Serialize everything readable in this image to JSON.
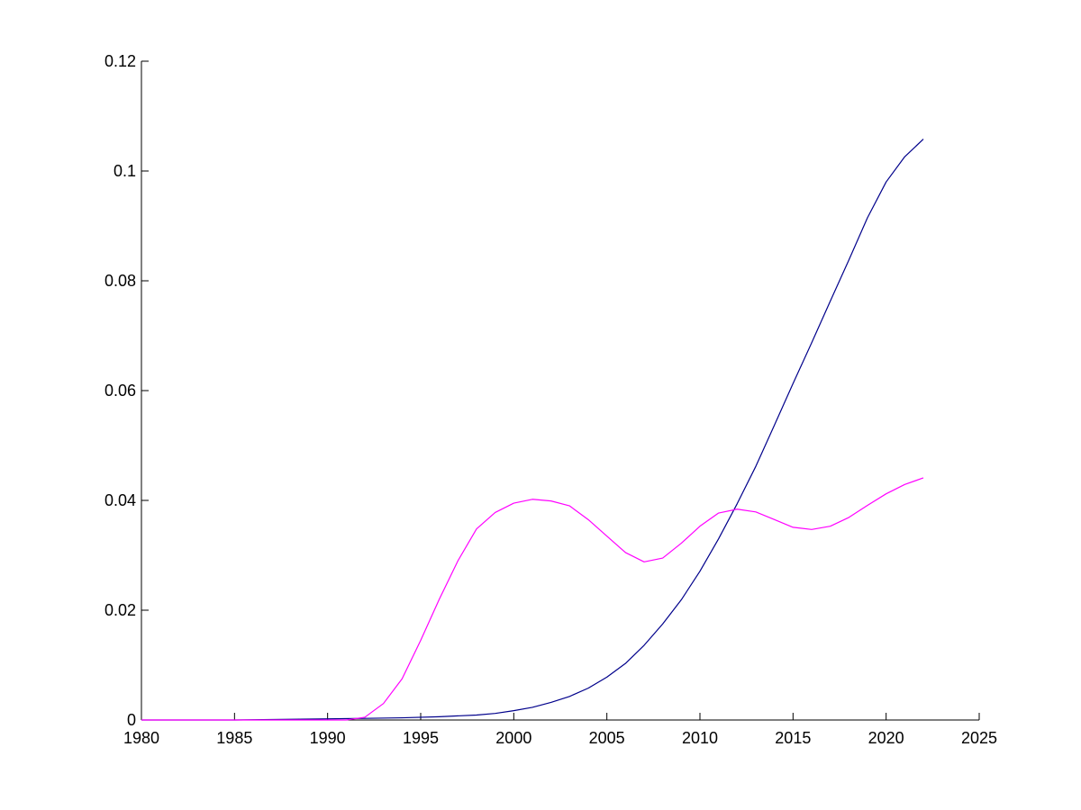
{
  "chart_data": {
    "type": "line",
    "title": "",
    "xlabel": "",
    "ylabel": "",
    "xlim": [
      1980,
      2025
    ],
    "ylim": [
      0,
      0.12
    ],
    "grid": false,
    "legend": "none",
    "x_ticks": [
      "1980",
      "1985",
      "1990",
      "1995",
      "2000",
      "2005",
      "2010",
      "2015",
      "2020",
      "2025"
    ],
    "y_ticks": [
      "0",
      "0.02",
      "0.04",
      "0.06",
      "0.08",
      "0.1",
      "0.12"
    ],
    "series": [
      {
        "color": "#00008b",
        "x": [
          1980,
          1985,
          1990,
          1992,
          1994,
          1996,
          1998,
          1999,
          2000,
          2001,
          2002,
          2003,
          2004,
          2005,
          2006,
          2007,
          2008,
          2009,
          2010,
          2011,
          2012,
          2013,
          2014,
          2015,
          2016,
          2017,
          2018,
          2019,
          2020,
          2021,
          2022
        ],
        "y": [
          0,
          0,
          0.0002,
          0.0003,
          0.0004,
          0.0006,
          0.0009,
          0.0012,
          0.0017,
          0.0023,
          0.0032,
          0.0043,
          0.0058,
          0.0078,
          0.0103,
          0.0136,
          0.0175,
          0.0219,
          0.0271,
          0.033,
          0.0394,
          0.0462,
          0.0537,
          0.0613,
          0.0687,
          0.0763,
          0.0838,
          0.0915,
          0.098,
          0.1026,
          0.1058
        ]
      },
      {
        "color": "#ff00ff",
        "x": [
          1980,
          1985,
          1990,
          1991,
          1992,
          1993,
          1994,
          1995,
          1996,
          1997,
          1998,
          1999,
          2000,
          2001,
          2002,
          2003,
          2004,
          2005,
          2006,
          2007,
          2008,
          2009,
          2010,
          2011,
          2012,
          2013,
          2014,
          2015,
          2016,
          2017,
          2018,
          2019,
          2020,
          2021,
          2022
        ],
        "y": [
          0,
          0,
          0,
          0,
          0.0005,
          0.003,
          0.0075,
          0.0145,
          0.022,
          0.029,
          0.0348,
          0.0378,
          0.0395,
          0.0402,
          0.0399,
          0.039,
          0.0365,
          0.0335,
          0.0305,
          0.0288,
          0.0295,
          0.0322,
          0.0353,
          0.0377,
          0.0384,
          0.0379,
          0.0365,
          0.0351,
          0.0347,
          0.0353,
          0.0369,
          0.0391,
          0.0412,
          0.0429,
          0.0441
        ]
      }
    ]
  }
}
